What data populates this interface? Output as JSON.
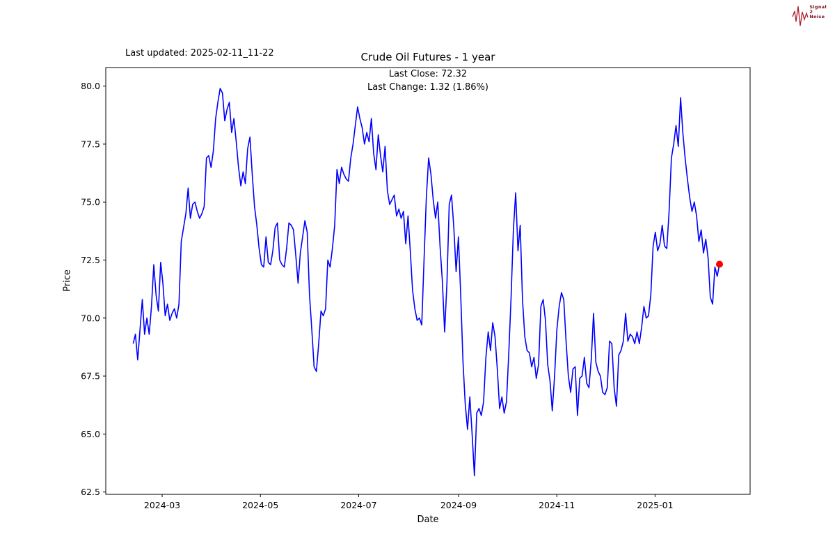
{
  "annotation": {
    "last_updated": "Last updated: 2025-02-11_11-22"
  },
  "logo": {
    "line1": "Signal",
    "line2": "2",
    "line3": "Noise"
  },
  "chart_data": {
    "type": "line",
    "title": "Crude Oil Futures - 1 year",
    "subtitle_lines": [
      "Last Close: 72.32",
      "Last Change: 1.32 (1.86%)"
    ],
    "xlabel": "Date",
    "ylabel": "Price",
    "last_close": 72.32,
    "last_change": "1.32 (1.86%)",
    "line_color": "#0000ff",
    "last_point_marker_color": "#ff0000",
    "legend": "none",
    "grid": false,
    "x_tick_labels": [
      "2024-03",
      "2024-05",
      "2024-07",
      "2024-09",
      "2024-11",
      "2025-01"
    ],
    "x_tick_days": [
      18,
      79,
      140,
      202,
      263,
      324
    ],
    "y_tick_values": [
      62.5,
      65.0,
      67.5,
      70.0,
      72.5,
      75.0,
      77.5,
      80.0
    ],
    "xlim_days": [
      -17,
      383
    ],
    "ylim": [
      62.4,
      80.8
    ],
    "total_days": 364,
    "values": [
      68.9,
      69.3,
      68.2,
      69.5,
      70.8,
      69.3,
      70.0,
      69.3,
      70.5,
      72.3,
      71.0,
      70.3,
      72.4,
      71.5,
      70.1,
      70.6,
      69.9,
      70.2,
      70.4,
      70.0,
      70.6,
      73.3,
      73.9,
      74.5,
      75.6,
      74.3,
      74.9,
      75.0,
      74.6,
      74.3,
      74.5,
      74.8,
      76.9,
      77.0,
      76.5,
      77.2,
      78.6,
      79.3,
      79.9,
      79.7,
      78.5,
      79.0,
      79.3,
      78.0,
      78.6,
      77.6,
      76.5,
      75.7,
      76.3,
      75.8,
      77.3,
      77.8,
      76.2,
      74.8,
      74.0,
      73.0,
      72.3,
      72.2,
      73.5,
      72.4,
      72.3,
      72.9,
      73.9,
      74.1,
      72.5,
      72.3,
      72.2,
      73.0,
      74.1,
      74.0,
      73.8,
      72.7,
      71.5,
      72.8,
      73.5,
      74.2,
      73.7,
      71.0,
      69.5,
      67.9,
      67.7,
      68.9,
      70.3,
      70.1,
      70.4,
      72.5,
      72.2,
      73.0,
      74.0,
      76.4,
      75.8,
      76.5,
      76.2,
      76.0,
      75.9,
      76.9,
      77.5,
      78.3,
      79.1,
      78.6,
      78.2,
      77.5,
      78.0,
      77.6,
      78.6,
      77.1,
      76.4,
      77.9,
      77.0,
      76.3,
      77.4,
      75.5,
      74.9,
      75.1,
      75.3,
      74.4,
      74.7,
      74.3,
      74.6,
      73.2,
      74.4,
      72.9,
      71.2,
      70.4,
      69.9,
      70.0,
      69.7,
      72.5,
      75.2,
      76.9,
      76.2,
      75.1,
      74.3,
      75.0,
      73.1,
      71.6,
      69.4,
      71.5,
      74.9,
      75.3,
      73.9,
      72.0,
      73.5,
      71.0,
      68.1,
      66.3,
      65.2,
      66.6,
      65.0,
      63.2,
      65.9,
      66.1,
      65.8,
      66.4,
      68.3,
      69.4,
      68.6,
      69.8,
      69.2,
      67.8,
      66.1,
      66.6,
      65.9,
      66.4,
      68.5,
      70.9,
      73.8,
      75.4,
      72.9,
      74.0,
      70.8,
      69.2,
      68.6,
      68.5,
      67.9,
      68.3,
      67.4,
      68.0,
      70.5,
      70.8,
      69.9,
      68.0,
      67.3,
      66.0,
      67.5,
      69.5,
      70.5,
      71.1,
      70.8,
      69.0,
      67.5,
      66.8,
      67.8,
      67.9,
      65.8,
      67.4,
      67.5,
      68.3,
      67.2,
      67.0,
      68.2,
      70.2,
      68.1,
      67.7,
      67.5,
      66.8,
      66.7,
      67.0,
      69.0,
      68.9,
      67.0,
      66.2,
      68.4,
      68.6,
      69.0,
      70.2,
      69.0,
      69.3,
      69.2,
      68.9,
      69.4,
      68.9,
      69.6,
      70.5,
      70.0,
      70.1,
      71.0,
      73.1,
      73.7,
      72.9,
      73.2,
      74.0,
      73.1,
      73.0,
      74.6,
      76.9,
      77.5,
      78.3,
      77.4,
      79.5,
      78.0,
      76.9,
      76.0,
      75.2,
      74.6,
      75.0,
      74.4,
      73.3,
      73.8,
      72.8,
      73.4,
      72.6,
      70.9,
      70.6,
      72.2,
      71.8,
      72.32
    ]
  }
}
